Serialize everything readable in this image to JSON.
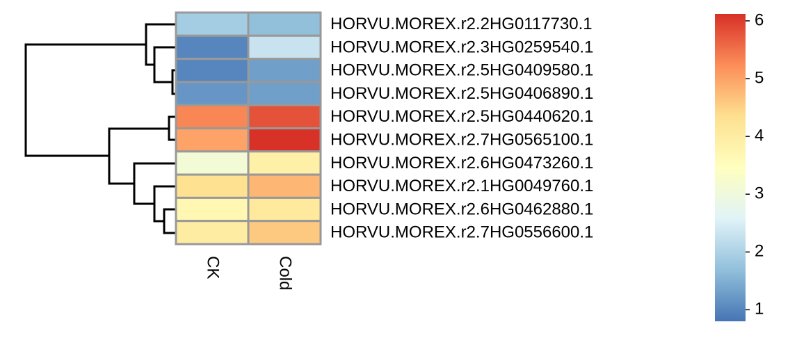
{
  "chart_data": {
    "type": "heatmap",
    "rows": [
      "HORVU.MOREX.r2.2HG0117730.1",
      "HORVU.MOREX.r2.3HG0259540.1",
      "HORVU.MOREX.r2.5HG0409580.1",
      "HORVU.MOREX.r2.5HG0406890.1",
      "HORVU.MOREX.r2.5HG0440620.1",
      "HORVU.MOREX.r2.7HG0565100.1",
      "HORVU.MOREX.r2.6HG0473260.1",
      "HORVU.MOREX.r2.1HG0049760.1",
      "HORVU.MOREX.r2.6HG0462880.1",
      "HORVU.MOREX.r2.7HG0556600.1"
    ],
    "columns": [
      "CK",
      "Cold"
    ],
    "values": [
      [
        1.9,
        1.7
      ],
      [
        1.0,
        2.3
      ],
      [
        1.0,
        1.3
      ],
      [
        1.2,
        1.3
      ],
      [
        5.3,
        5.8
      ],
      [
        5.0,
        6.1
      ],
      [
        3.1,
        3.9
      ],
      [
        4.3,
        4.8
      ],
      [
        3.7,
        4.1
      ],
      [
        4.0,
        4.6
      ]
    ],
    "colors": [
      "#4575B4",
      "#91BFDB",
      "#E0F3F8",
      "#FFFFBF",
      "#FEE090",
      "#FC8D59",
      "#D73027"
    ],
    "zlim": [
      0.8,
      6.12
    ],
    "zticks": [
      1,
      2,
      3,
      4,
      5,
      6
    ]
  }
}
